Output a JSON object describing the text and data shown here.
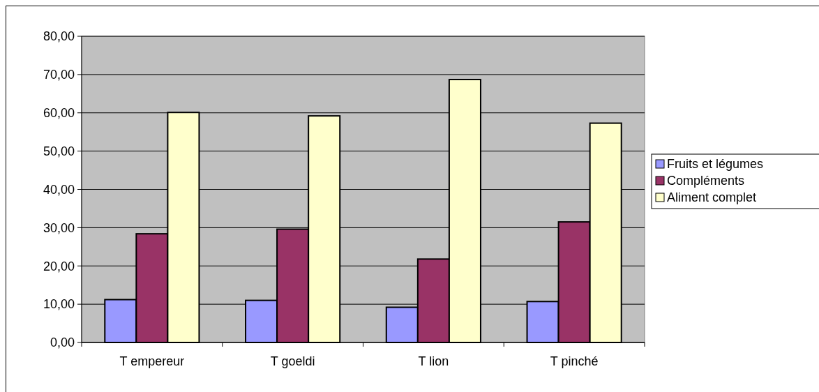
{
  "chart_data": {
    "type": "bar",
    "categories": [
      "T empereur",
      "T goeldi",
      "T lion",
      "T pinché"
    ],
    "series": [
      {
        "name": "Fruits et légumes",
        "color": "#9999ff",
        "values": [
          11.2,
          11.0,
          9.2,
          10.7
        ]
      },
      {
        "name": "Compléments",
        "color": "#993366",
        "values": [
          28.4,
          29.6,
          21.8,
          31.5
        ]
      },
      {
        "name": "Aliment complet",
        "color": "#ffffcc",
        "values": [
          60.1,
          59.2,
          68.7,
          57.3
        ]
      }
    ],
    "ylim": [
      0,
      80
    ],
    "yticks": [
      {
        "value": 0,
        "label": "0,00"
      },
      {
        "value": 10,
        "label": "10,00"
      },
      {
        "value": 20,
        "label": "20,00"
      },
      {
        "value": 30,
        "label": "30,00"
      },
      {
        "value": 40,
        "label": "40,00"
      },
      {
        "value": 50,
        "label": "50,00"
      },
      {
        "value": 60,
        "label": "60,00"
      },
      {
        "value": 70,
        "label": "70,00"
      },
      {
        "value": 80,
        "label": "80,00"
      }
    ],
    "grid": "y",
    "legend": "right"
  }
}
